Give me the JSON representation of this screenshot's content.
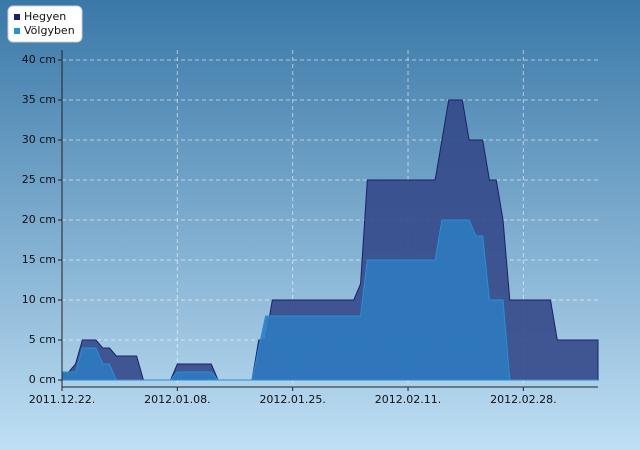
{
  "chart_data": {
    "type": "area",
    "x": [
      "2011.12.22.",
      "2011.12.23.",
      "2011.12.24.",
      "2011.12.25.",
      "2011.12.26.",
      "2011.12.27.",
      "2011.12.28.",
      "2011.12.29.",
      "2011.12.30.",
      "2011.12.31.",
      "2012.01.01.",
      "2012.01.02.",
      "2012.01.03.",
      "2012.01.04.",
      "2012.01.05.",
      "2012.01.06.",
      "2012.01.07.",
      "2012.01.08.",
      "2012.01.09.",
      "2012.01.10.",
      "2012.01.11.",
      "2012.01.12.",
      "2012.01.13.",
      "2012.01.14.",
      "2012.01.15.",
      "2012.01.16.",
      "2012.01.17.",
      "2012.01.18.",
      "2012.01.19.",
      "2012.01.20.",
      "2012.01.21.",
      "2012.01.22.",
      "2012.01.23.",
      "2012.01.24.",
      "2012.01.25.",
      "2012.01.26.",
      "2012.01.27.",
      "2012.01.28.",
      "2012.01.29.",
      "2012.01.30.",
      "2012.01.31.",
      "2012.02.01.",
      "2012.02.02.",
      "2012.02.03.",
      "2012.02.04.",
      "2012.02.05.",
      "2012.02.06.",
      "2012.02.07.",
      "2012.02.08.",
      "2012.02.09.",
      "2012.02.10.",
      "2012.02.11.",
      "2012.02.12.",
      "2012.02.13.",
      "2012.02.14.",
      "2012.02.15.",
      "2012.02.16.",
      "2012.02.17.",
      "2012.02.18.",
      "2012.02.19.",
      "2012.02.20.",
      "2012.02.21.",
      "2012.02.22.",
      "2012.02.23.",
      "2012.02.24.",
      "2012.02.25.",
      "2012.02.26.",
      "2012.02.27.",
      "2012.02.28.",
      "2012.02.29.",
      "2012.03.01.",
      "2012.03.02.",
      "2012.03.03.",
      "2012.03.04.",
      "2012.03.05.",
      "2012.03.06.",
      "2012.03.07.",
      "2012.03.08.",
      "2012.03.09.",
      "2012.03.10."
    ],
    "series": [
      {
        "name": "Hegyen",
        "color": "#1b2166",
        "fill": "#34498a",
        "values": [
          1,
          1,
          2,
          5,
          5,
          5,
          4,
          4,
          3,
          3,
          3,
          3,
          0,
          0,
          0,
          0,
          0,
          2,
          2,
          2,
          2,
          2,
          2,
          0,
          0,
          0,
          0,
          0,
          0,
          5,
          5,
          10,
          10,
          10,
          10,
          10,
          10,
          10,
          10,
          10,
          10,
          10,
          10,
          10,
          12,
          25,
          25,
          25,
          25,
          25,
          25,
          25,
          25,
          25,
          25,
          25,
          30,
          35,
          35,
          35,
          30,
          30,
          30,
          25,
          25,
          20,
          10,
          10,
          10,
          10,
          10,
          10,
          10,
          5,
          5,
          5,
          5,
          5,
          5,
          5
        ]
      },
      {
        "name": "Völgyben",
        "color": "#2b8fd4",
        "fill": "#2e7bbf",
        "values": [
          1,
          1,
          1,
          4,
          4,
          4,
          2,
          2,
          0,
          0,
          0,
          0,
          0,
          0,
          0,
          0,
          0,
          1,
          1,
          1,
          1,
          1,
          1,
          0,
          0,
          0,
          0,
          0,
          0,
          4,
          8,
          8,
          8,
          8,
          8,
          8,
          8,
          8,
          8,
          8,
          8,
          8,
          8,
          8,
          8,
          15,
          15,
          15,
          15,
          15,
          15,
          15,
          15,
          15,
          15,
          15,
          20,
          20,
          20,
          20,
          20,
          18,
          18,
          10,
          10,
          10,
          0,
          0,
          0,
          0,
          0,
          0,
          0,
          0,
          0,
          0,
          0,
          0,
          0,
          0
        ]
      }
    ],
    "xlim": [
      "2011.12.22.",
      "2012.03.10."
    ],
    "xticks": [
      "2011.12.22.",
      "2012.01.08.",
      "2012.01.25.",
      "2012.02.11.",
      "2012.02.28."
    ],
    "ylim": [
      0,
      40
    ],
    "yticks": [
      {
        "value": 0,
        "label": "0 cm"
      },
      {
        "value": 5,
        "label": "5 cm"
      },
      {
        "value": 10,
        "label": "10 cm"
      },
      {
        "value": 15,
        "label": "15 cm"
      },
      {
        "value": 20,
        "label": "20 cm"
      },
      {
        "value": 25,
        "label": "25 cm"
      },
      {
        "value": 30,
        "label": "30 cm"
      },
      {
        "value": 35,
        "label": "35 cm"
      },
      {
        "value": 40,
        "label": "40 cm"
      }
    ],
    "grid": true,
    "legend": "top-left"
  }
}
